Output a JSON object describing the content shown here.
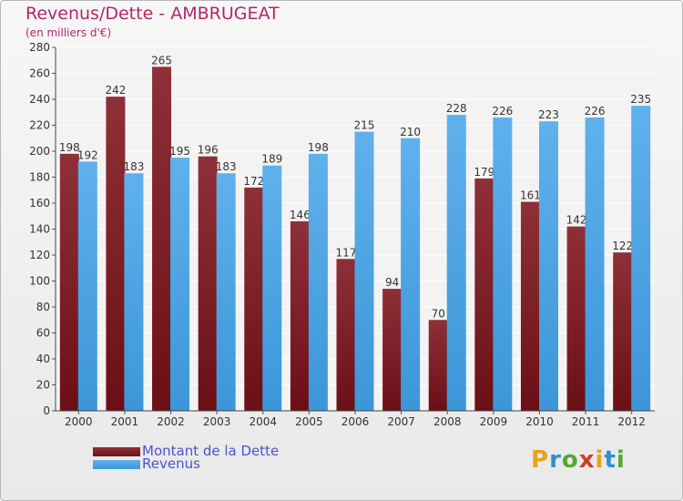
{
  "title": "Revenus/Dette - AMBRUGEAT",
  "subtitle": "(en milliers d'€)",
  "logo": {
    "text": "Proxiti",
    "letters": [
      "P",
      "r",
      "o",
      "x",
      "i",
      "t",
      "i"
    ],
    "colors": [
      "#e8a21c",
      "#2f8fd1",
      "#55a833",
      "#d13a2a",
      "#e8a21c",
      "#2f8fd1",
      "#55a833"
    ]
  },
  "colors": {
    "dette": "#6b0f16",
    "dette_light": "#8f3038",
    "revenus": "#3c96d8",
    "revenus_light": "#5fb1ec",
    "title": "#b5256a",
    "legend_text": "#4a54c8"
  },
  "chart_data": {
    "type": "bar",
    "title": "Revenus/Dette - AMBRUGEAT",
    "subtitle": "(en milliers d'€)",
    "categories": [
      "2000",
      "2001",
      "2002",
      "2003",
      "2004",
      "2005",
      "2006",
      "2007",
      "2008",
      "2009",
      "2010",
      "2011",
      "2012"
    ],
    "series": [
      {
        "name": "Montant de la Dette",
        "values": [
          198,
          242,
          265,
          196,
          172,
          146,
          117,
          94,
          70,
          179,
          161,
          142,
          122
        ]
      },
      {
        "name": "Revenus",
        "values": [
          192,
          183,
          195,
          183,
          189,
          198,
          215,
          210,
          228,
          226,
          223,
          226,
          235
        ]
      }
    ],
    "ylim": [
      0,
      280
    ],
    "yticks": [
      "0",
      "20",
      "40",
      "60",
      "80",
      "100",
      "120",
      "140",
      "160",
      "180",
      "200",
      "220",
      "240",
      "260",
      "280"
    ],
    "grid": true,
    "legend_position": "bottom-left"
  }
}
